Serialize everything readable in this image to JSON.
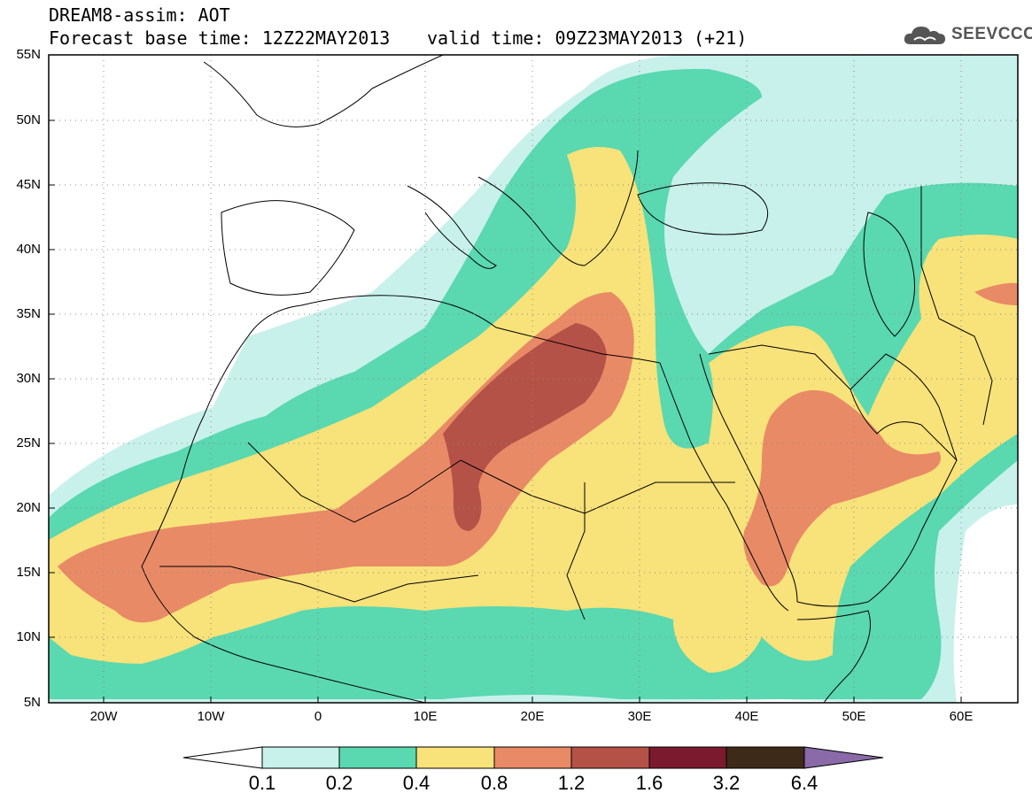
{
  "title": {
    "line1": "DREAM8-assim: AOT",
    "line2": "Forecast base time: 12Z22MAY2013",
    "valid": "valid time: 09Z23MAY2013 (+21)"
  },
  "logo": {
    "text": "SEEVCCC",
    "icon": "cloud-logo-icon"
  },
  "axes": {
    "lat_labels": [
      "55N",
      "50N",
      "45N",
      "40N",
      "35N",
      "30N",
      "25N",
      "20N",
      "15N",
      "10N",
      "5N"
    ],
    "lon_labels": [
      "20W",
      "10W",
      "0",
      "10E",
      "20E",
      "30E",
      "40E",
      "50E",
      "60E"
    ]
  },
  "colorbar": {
    "labels": [
      "0.1",
      "0.2",
      "0.4",
      "0.8",
      "1.2",
      "1.6",
      "3.2",
      "6.4"
    ],
    "colors": [
      "#ffffff",
      "#c8f1ec",
      "#5ad8b0",
      "#f8e27a",
      "#e98a66",
      "#b55248",
      "#7b1a2e",
      "#3e2a18",
      "#8a6aa8"
    ]
  },
  "map_colors": {
    "ocean_bg": "#ffffff",
    "class_01": "#c8f1ec",
    "class_02": "#5ad8b0",
    "class_04": "#f8e27a",
    "class_08": "#e98a66",
    "class_12": "#b55248",
    "coast": "#000000"
  }
}
